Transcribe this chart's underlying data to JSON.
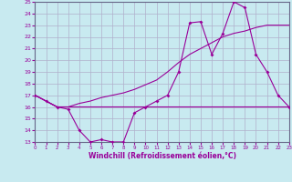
{
  "bg_color": "#c8eaf0",
  "grid_color": "#b0b0cc",
  "line_color": "#990099",
  "spine_color": "#666688",
  "x_data": [
    0,
    1,
    2,
    3,
    4,
    5,
    6,
    7,
    8,
    9,
    10,
    11,
    12,
    13,
    14,
    15,
    16,
    17,
    18,
    19,
    20,
    21,
    22,
    23
  ],
  "line1_y": [
    17.0,
    16.5,
    16.0,
    16.0,
    16.0,
    16.0,
    16.0,
    16.0,
    16.0,
    16.0,
    16.0,
    16.0,
    16.0,
    16.0,
    16.0,
    16.0,
    16.0,
    16.0,
    16.0,
    16.0,
    16.0,
    16.0,
    16.0,
    16.0
  ],
  "line2_y": [
    17.0,
    16.5,
    16.0,
    16.0,
    16.3,
    16.5,
    16.8,
    17.0,
    17.2,
    17.5,
    17.9,
    18.3,
    19.0,
    19.8,
    20.5,
    21.0,
    21.5,
    22.0,
    22.3,
    22.5,
    22.8,
    23.0,
    23.0,
    23.0
  ],
  "line3_y": [
    17.0,
    16.5,
    16.0,
    15.8,
    14.0,
    13.0,
    13.2,
    13.0,
    13.0,
    15.5,
    16.0,
    16.5,
    17.0,
    19.0,
    23.2,
    23.3,
    20.5,
    22.3,
    25.0,
    24.5,
    20.5,
    19.0,
    17.0,
    16.0
  ],
  "xlabel": "Windchill (Refroidissement éolien,°C)",
  "ylim": [
    13,
    25
  ],
  "xlim": [
    0,
    23
  ],
  "yticks": [
    13,
    14,
    15,
    16,
    17,
    18,
    19,
    20,
    21,
    22,
    23,
    24,
    25
  ],
  "xticks": [
    0,
    1,
    2,
    3,
    4,
    5,
    6,
    7,
    8,
    9,
    10,
    11,
    12,
    13,
    14,
    15,
    16,
    17,
    18,
    19,
    20,
    21,
    22,
    23
  ]
}
